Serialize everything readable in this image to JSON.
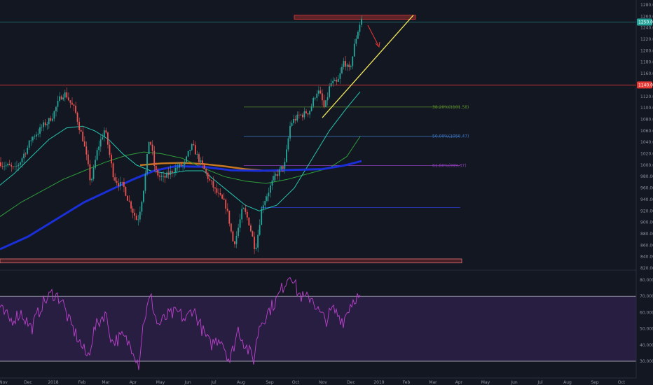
{
  "chart_data": [
    {
      "type": "candlestick",
      "ylim": [
        810,
        1300
      ],
      "y_ticks": [
        "1260.00",
        "1240.00",
        "1220.00",
        "1200.00",
        "1180.00",
        "1160.00",
        "1120.00",
        "1100.00",
        "1080.00",
        "1060.00",
        "1040.00",
        "1020.00",
        "1000.00",
        "980.00",
        "960.00",
        "940.00",
        "920.00",
        "900.00",
        "880.00",
        "860.00",
        "840.00",
        "820.00"
      ],
      "y_top_label": "1280.00",
      "current_price": "1250.00",
      "current_price_value": 1250,
      "resistance_price": "1140.00",
      "resistance_value": 1140,
      "colors": {
        "up": "#26a69a",
        "down": "#ef5350",
        "ma_fast": "#26c6b0",
        "ma_mid": "#2e9d3a",
        "ma_slow": "#1a2fd8",
        "ma_orange": "#c8781e",
        "resistance": "#e53935",
        "trend": "#f1e65a",
        "price_tag": "#26a69a"
      },
      "fib_levels": [
        {
          "label": "38.20%(1101.58)",
          "value": 1101.58,
          "color": "#5b8c2a"
        },
        {
          "label": "50.00%(1050.47)",
          "value": 1050.47,
          "color": "#3c78c8"
        },
        {
          "label": "61.80%(999.37)",
          "value": 999.37,
          "color": "#8d3fb8"
        },
        {
          "label": "",
          "value": 926,
          "color": "#2f3fd8"
        }
      ],
      "annotations": [
        {
          "type": "zone",
          "name": "top-resistance-zone",
          "y_range": [
            1255,
            1262
          ]
        },
        {
          "type": "zone",
          "name": "bottom-support-zone",
          "y_range": [
            829,
            836
          ]
        },
        {
          "type": "trendline",
          "name": "rising-trendline"
        },
        {
          "type": "arrow",
          "name": "down-arrow"
        }
      ]
    },
    {
      "type": "line",
      "name": "rsi-panel",
      "ylim": [
        25,
        88
      ],
      "y_ticks": [
        "80.0000",
        "70.0000",
        "60.0000",
        "50.0000",
        "40.0000",
        "30.0000"
      ],
      "levels": [
        70,
        30
      ],
      "colors": {
        "line": "#c040d0",
        "band": "#2a1f45"
      }
    }
  ],
  "x_labels": [
    "Nov",
    "Dec",
    "2018",
    "Feb",
    "Mar",
    "Apr",
    "May",
    "Jun",
    "Jul",
    "Aug",
    "Sep",
    "Oct",
    "Nov",
    "Dec",
    "2019",
    "Feb",
    "Mar",
    "Apr",
    "May",
    "Jun",
    "Jul",
    "Aug",
    "Sep",
    "Oct"
  ]
}
